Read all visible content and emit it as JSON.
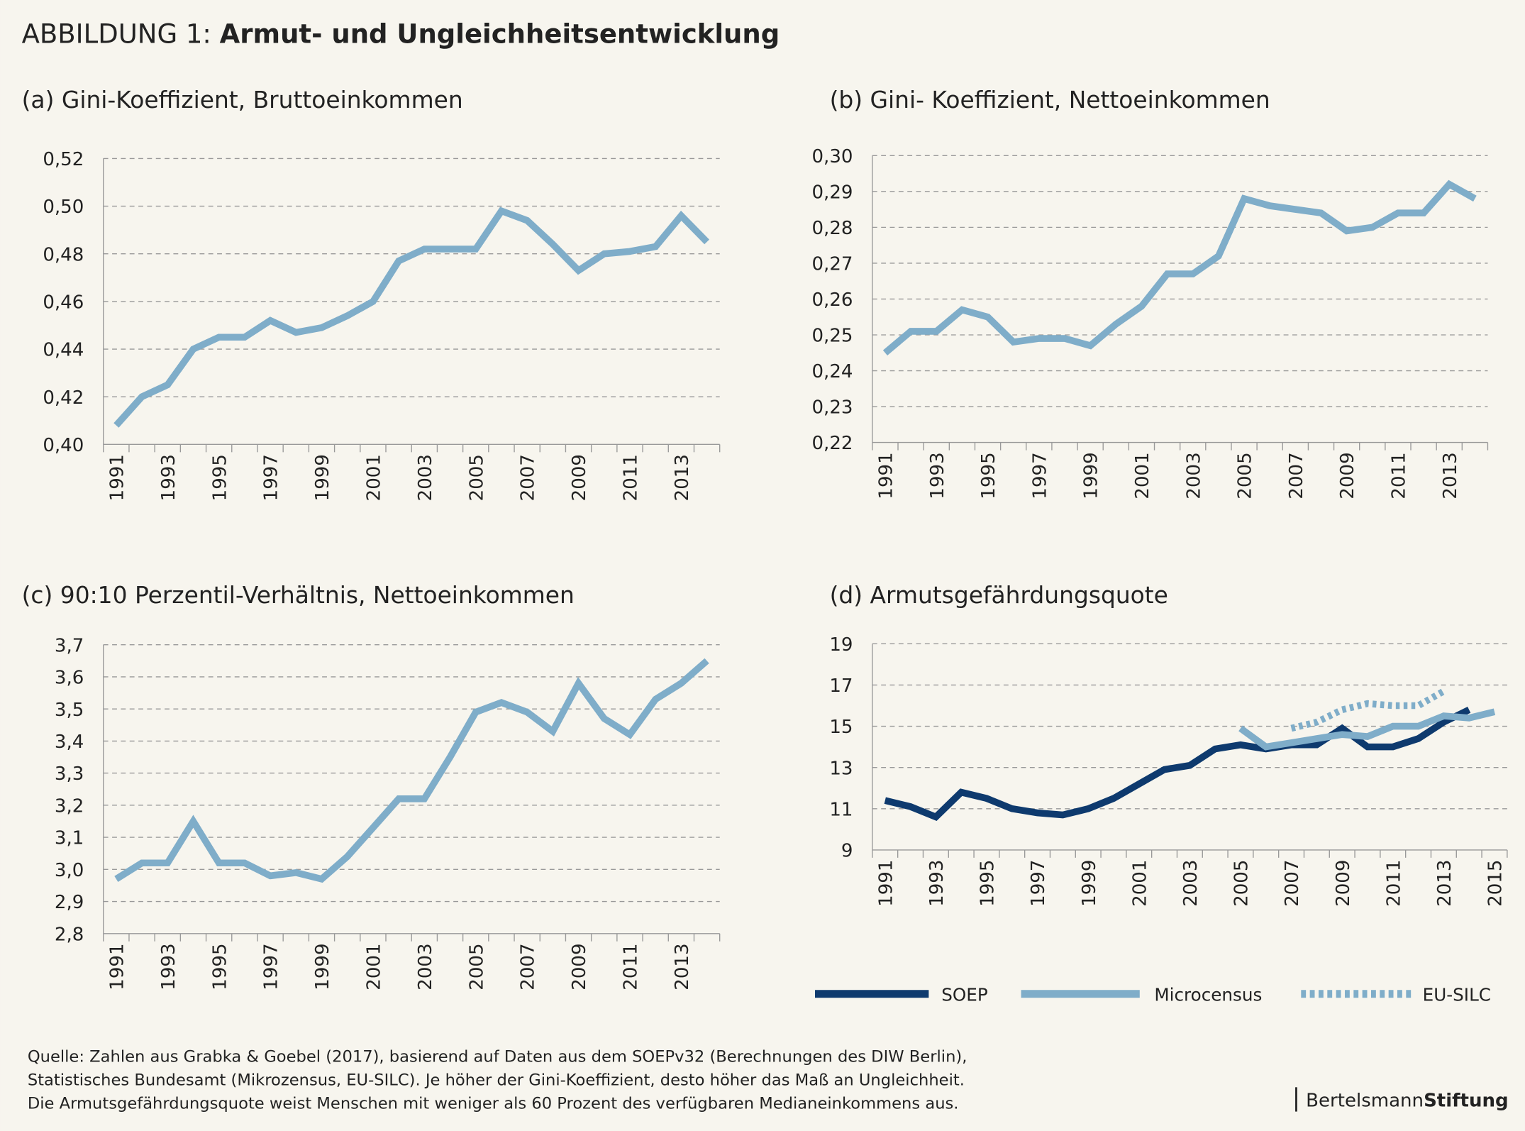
{
  "heading": {
    "label": "ABBILDUNG 1:",
    "title": "Armut- und Ungleichheitsentwicklung"
  },
  "chart_data": [
    {
      "type": "line",
      "title": "(a) Gini-Koeffizient, Bruttoeinkommen",
      "x": [
        1991,
        1992,
        1993,
        1994,
        1995,
        1996,
        1997,
        1998,
        1999,
        2000,
        2001,
        2002,
        2003,
        2004,
        2005,
        2006,
        2007,
        2008,
        2009,
        2010,
        2011,
        2012,
        2013,
        2014
      ],
      "xlim": [
        1990.5,
        2014.5
      ],
      "xticks": [
        1991,
        1993,
        1995,
        1997,
        1999,
        2001,
        2003,
        2005,
        2007,
        2009,
        2011,
        2013
      ],
      "ylim": [
        0.4,
        0.52
      ],
      "yticks": [
        {
          "value": 0.4,
          "label": "0,40"
        },
        {
          "value": 0.42,
          "label": "0,42"
        },
        {
          "value": 0.44,
          "label": "0,44"
        },
        {
          "value": 0.46,
          "label": "0,46"
        },
        {
          "value": 0.48,
          "label": "0,48"
        },
        {
          "value": 0.5,
          "label": "0,50"
        },
        {
          "value": 0.52,
          "label": "0,52"
        }
      ],
      "grid": true,
      "series": [
        {
          "color": "#7fadc9",
          "values": [
            0.408,
            0.42,
            0.425,
            0.44,
            0.445,
            0.445,
            0.452,
            0.447,
            0.449,
            0.454,
            0.46,
            0.477,
            0.482,
            0.482,
            0.482,
            0.498,
            0.494,
            0.484,
            0.473,
            0.48,
            0.481,
            0.483,
            0.496,
            0.485
          ]
        }
      ]
    },
    {
      "type": "line",
      "title": "(b) Gini- Koeffizient, Nettoeinkommen",
      "x": [
        1991,
        1992,
        1993,
        1994,
        1995,
        1996,
        1997,
        1998,
        1999,
        2000,
        2001,
        2002,
        2003,
        2004,
        2005,
        2006,
        2007,
        2008,
        2009,
        2010,
        2011,
        2012,
        2013,
        2014
      ],
      "xlim": [
        1990.5,
        2014.5
      ],
      "xticks": [
        1991,
        1993,
        1995,
        1997,
        1999,
        2001,
        2003,
        2005,
        2007,
        2009,
        2011,
        2013
      ],
      "ylim": [
        0.22,
        0.3
      ],
      "yticks": [
        {
          "value": 0.22,
          "label": "0,22"
        },
        {
          "value": 0.23,
          "label": "0,23"
        },
        {
          "value": 0.24,
          "label": "0,24"
        },
        {
          "value": 0.25,
          "label": "0,25"
        },
        {
          "value": 0.26,
          "label": "0,26"
        },
        {
          "value": 0.27,
          "label": "0,27"
        },
        {
          "value": 0.28,
          "label": "0,28"
        },
        {
          "value": 0.29,
          "label": "0,29"
        },
        {
          "value": 0.3,
          "label": "0,30"
        }
      ],
      "grid": true,
      "series": [
        {
          "color": "#7fadc9",
          "values": [
            0.245,
            0.251,
            0.251,
            0.257,
            0.255,
            0.248,
            0.249,
            0.249,
            0.247,
            0.253,
            0.258,
            0.267,
            0.267,
            0.272,
            0.288,
            0.286,
            0.285,
            0.284,
            0.279,
            0.28,
            0.284,
            0.284,
            0.292,
            0.288
          ]
        }
      ]
    },
    {
      "type": "line",
      "title": "(c) 90:10 Perzentil-Verhältnis, Nettoeinkommen",
      "x": [
        1991,
        1992,
        1993,
        1994,
        1995,
        1996,
        1997,
        1998,
        1999,
        2000,
        2001,
        2002,
        2003,
        2004,
        2005,
        2006,
        2007,
        2008,
        2009,
        2010,
        2011,
        2012,
        2013,
        2014
      ],
      "xlim": [
        1990.5,
        2014.5
      ],
      "xticks": [
        1991,
        1993,
        1995,
        1997,
        1999,
        2001,
        2003,
        2005,
        2007,
        2009,
        2011,
        2013
      ],
      "ylim": [
        2.8,
        3.7
      ],
      "yticks": [
        {
          "value": 2.8,
          "label": "2,8"
        },
        {
          "value": 2.9,
          "label": "2,9"
        },
        {
          "value": 3.0,
          "label": "3,0"
        },
        {
          "value": 3.1,
          "label": "3,1"
        },
        {
          "value": 3.2,
          "label": "3,2"
        },
        {
          "value": 3.3,
          "label": "3,3"
        },
        {
          "value": 3.4,
          "label": "3,4"
        },
        {
          "value": 3.5,
          "label": "3,5"
        },
        {
          "value": 3.6,
          "label": "3,6"
        },
        {
          "value": 3.7,
          "label": "3,7"
        }
      ],
      "grid": true,
      "series": [
        {
          "color": "#7fadc9",
          "values": [
            2.97,
            3.02,
            3.02,
            3.15,
            3.02,
            3.02,
            2.98,
            2.99,
            2.97,
            3.04,
            3.13,
            3.22,
            3.22,
            3.35,
            3.49,
            3.52,
            3.49,
            3.43,
            3.58,
            3.47,
            3.42,
            3.53,
            3.58,
            3.65
          ]
        }
      ]
    },
    {
      "type": "line",
      "title": "(d) Armutsgefährdungsquote",
      "x": [
        1991,
        1992,
        1993,
        1994,
        1995,
        1996,
        1997,
        1998,
        1999,
        2000,
        2001,
        2002,
        2003,
        2004,
        2005,
        2006,
        2007,
        2008,
        2009,
        2010,
        2011,
        2012,
        2013,
        2014,
        2015
      ],
      "xlim": [
        1990.5,
        2015.5
      ],
      "xticks": [
        1991,
        1993,
        1995,
        1997,
        1999,
        2001,
        2003,
        2005,
        2007,
        2009,
        2011,
        2013,
        2015
      ],
      "ylim": [
        9,
        19
      ],
      "yticks": [
        9,
        11,
        13,
        15,
        17,
        19
      ],
      "grid": true,
      "legend": "bottom",
      "series": [
        {
          "name": "SOEP",
          "color": "#0e3a6e",
          "style": "solid",
          "values": [
            11.4,
            11.1,
            10.6,
            11.8,
            11.5,
            11.0,
            10.8,
            10.7,
            11.0,
            11.5,
            12.2,
            12.9,
            13.1,
            13.9,
            14.1,
            13.9,
            14.1,
            14.1,
            14.9,
            14.0,
            14.0,
            14.4,
            15.2,
            15.8,
            null
          ]
        },
        {
          "name": "Microcensus",
          "color": "#7fadc9",
          "style": "solid",
          "values": [
            null,
            null,
            null,
            null,
            null,
            null,
            null,
            null,
            null,
            null,
            null,
            null,
            null,
            null,
            14.9,
            14.0,
            14.2,
            14.4,
            14.6,
            14.5,
            15.0,
            15.0,
            15.5,
            15.4,
            15.7
          ]
        },
        {
          "name": "EU-SILC",
          "color": "#7fadc9",
          "style": "dotted",
          "values": [
            null,
            null,
            null,
            null,
            null,
            null,
            null,
            null,
            null,
            null,
            null,
            null,
            null,
            null,
            null,
            null,
            14.9,
            15.2,
            15.8,
            16.1,
            16.0,
            16.0,
            16.7,
            null,
            null
          ]
        }
      ]
    }
  ],
  "source": [
    "Quelle: Zahlen aus Grabka & Goebel (2017), basierend auf Daten aus dem SOEPv32 (Berechnungen des DIW Berlin),",
    "Statistisches Bundesamt (Mikrozensus, EU-SILC). Je höher der Gini-Koeffizient, desto höher das Maß an Ungleichheit.",
    "Die Armutsgefährdungsquote weist Menschen mit weniger als 60 Prozent des verfügbaren Medianeinkommens aus."
  ],
  "logo": {
    "first": "Bertelsmann",
    "second": "Stiftung"
  }
}
